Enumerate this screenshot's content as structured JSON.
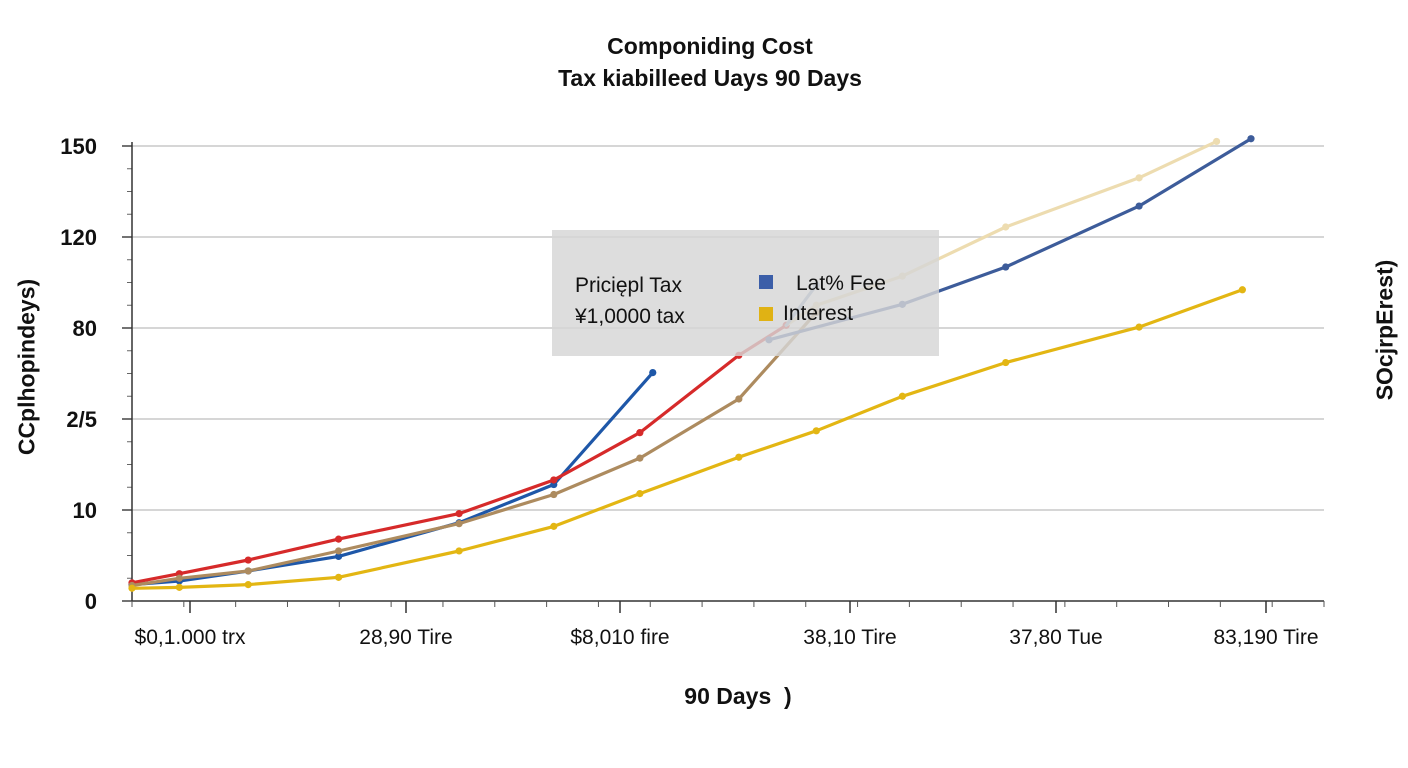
{
  "title": {
    "line1": "Componiding Cost",
    "line2": "Tax kiabilleed Uays 90 Days"
  },
  "chart_data": {
    "type": "line",
    "title": "Componiding Cost Tax kiabilleed Uays 90 Days",
    "xlabel": "90 Days  )",
    "ylabel_left": "CCplhopindeys)",
    "ylabel_right": "SOcjrpErest)",
    "y_ticks": [
      "0",
      "10",
      "2/5",
      "80",
      "120",
      "150"
    ],
    "x_tick_labels": [
      "$0,1.000 trx",
      "28,90 Tire",
      "$8,010 fire",
      "38,10 Tire",
      "37,80 Tue",
      "83,190 Tire"
    ],
    "grid": true,
    "legend": {
      "position": "center",
      "principal_title": "Priciępl Tax",
      "principal_value": "¥1,0000 tax",
      "entries": [
        {
          "label": "Lat% Fee",
          "color": "#3b5ea8"
        },
        {
          "label": "Interest",
          "color": "#e0b214"
        }
      ]
    },
    "y_scale_note": "tick positions 0,10,2/5,80,120,150 are evenly spaced; values below in tick-index units (0=0, 1=10, 2=2/5, 3=80, 4=120, 5=150)",
    "series": [
      {
        "color": "#1e57a8",
        "points": [
          [
            0.0,
            0.18
          ],
          [
            0.11,
            0.22
          ],
          [
            0.27,
            0.33
          ],
          [
            0.48,
            0.49
          ],
          [
            0.76,
            0.86
          ],
          [
            0.98,
            1.28
          ],
          [
            1.21,
            2.51
          ]
        ],
        "markers": [
          [
            0.0,
            0.18
          ],
          [
            0.11,
            0.22
          ],
          [
            0.27,
            0.33
          ],
          [
            0.48,
            0.49
          ],
          [
            0.76,
            0.86
          ],
          [
            0.98,
            1.28
          ],
          [
            1.21,
            2.51
          ]
        ]
      },
      {
        "color": "#d62a2a",
        "points": [
          [
            0.0,
            0.2
          ],
          [
            0.11,
            0.3
          ],
          [
            0.27,
            0.45
          ],
          [
            0.48,
            0.68
          ],
          [
            0.76,
            0.96
          ],
          [
            0.98,
            1.33
          ],
          [
            1.18,
            1.85
          ],
          [
            1.41,
            2.7
          ],
          [
            1.52,
            3.03
          ]
        ],
        "markers": [
          [
            0.0,
            0.2
          ],
          [
            0.11,
            0.3
          ],
          [
            0.27,
            0.45
          ],
          [
            0.48,
            0.68
          ],
          [
            0.76,
            0.96
          ],
          [
            0.98,
            1.33
          ],
          [
            1.18,
            1.85
          ],
          [
            1.41,
            2.7
          ],
          [
            1.52,
            3.03
          ]
        ]
      },
      {
        "color": "#ad8b5f",
        "points": [
          [
            0.0,
            0.17
          ],
          [
            0.11,
            0.25
          ],
          [
            0.27,
            0.33
          ],
          [
            0.48,
            0.55
          ],
          [
            0.76,
            0.85
          ],
          [
            0.98,
            1.17
          ],
          [
            1.18,
            1.57
          ],
          [
            1.41,
            2.22
          ],
          [
            1.59,
            3.17
          ]
        ],
        "markers": [
          [
            0.0,
            0.17
          ],
          [
            0.11,
            0.25
          ],
          [
            0.27,
            0.33
          ],
          [
            0.48,
            0.55
          ],
          [
            0.76,
            0.85
          ],
          [
            0.98,
            1.17
          ],
          [
            1.18,
            1.57
          ],
          [
            1.41,
            2.22
          ],
          [
            1.59,
            3.17
          ]
        ]
      },
      {
        "color": "#e3b613",
        "points": [
          [
            0.0,
            0.14
          ],
          [
            0.11,
            0.15
          ],
          [
            0.27,
            0.18
          ],
          [
            0.48,
            0.26
          ],
          [
            0.76,
            0.55
          ],
          [
            0.98,
            0.82
          ],
          [
            1.18,
            1.18
          ],
          [
            1.41,
            1.58
          ],
          [
            1.59,
            1.87
          ],
          [
            1.79,
            2.25
          ],
          [
            2.03,
            2.62
          ],
          [
            2.34,
            3.01
          ],
          [
            2.58,
            3.42
          ]
        ],
        "markers": [
          [
            0.0,
            0.14
          ],
          [
            0.11,
            0.15
          ],
          [
            0.27,
            0.18
          ],
          [
            0.48,
            0.26
          ],
          [
            0.76,
            0.55
          ],
          [
            0.98,
            0.82
          ],
          [
            1.18,
            1.18
          ],
          [
            1.41,
            1.58
          ],
          [
            1.59,
            1.87
          ],
          [
            1.79,
            2.25
          ],
          [
            2.03,
            2.62
          ],
          [
            2.34,
            3.01
          ],
          [
            2.58,
            3.42
          ]
        ]
      },
      {
        "color": "#eddcb0",
        "points": [
          [
            1.52,
            3.03
          ],
          [
            1.59,
            3.25
          ],
          [
            1.79,
            3.57
          ],
          [
            2.03,
            4.11
          ],
          [
            2.34,
            4.65
          ],
          [
            2.52,
            5.05
          ]
        ],
        "markers": [
          [
            1.59,
            3.25
          ],
          [
            1.79,
            3.57
          ],
          [
            2.03,
            4.11
          ],
          [
            2.34,
            4.65
          ],
          [
            2.52,
            5.05
          ]
        ]
      },
      {
        "color": "#3d5c9a",
        "points": [
          [
            1.48,
            2.87
          ],
          [
            1.79,
            3.26
          ],
          [
            2.03,
            3.67
          ],
          [
            2.34,
            4.34
          ],
          [
            2.6,
            5.08
          ]
        ],
        "markers": [
          [
            1.48,
            2.87
          ],
          [
            1.79,
            3.26
          ],
          [
            2.03,
            3.67
          ],
          [
            2.34,
            4.34
          ],
          [
            2.6,
            5.08
          ]
        ]
      },
      {
        "color": "#8fa8c6",
        "points": [
          [
            1.52,
            3.03
          ],
          [
            1.59,
            3.47
          ]
        ],
        "markers": [
          [
            1.59,
            3.47
          ]
        ]
      }
    ]
  }
}
